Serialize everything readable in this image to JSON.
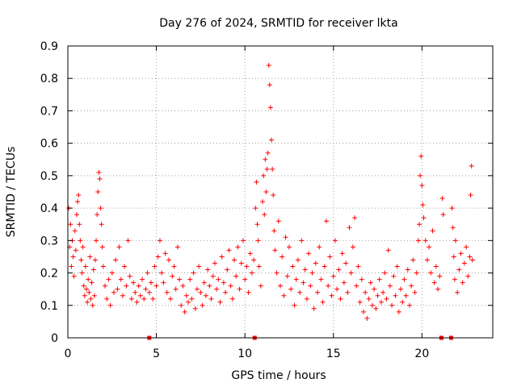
{
  "chart_data": {
    "type": "scatter",
    "title": "Day 276 of 2024, SRMTID for receiver lkta",
    "xlabel": "GPS time / hours",
    "ylabel": "SRMTID / TECUs",
    "xlim": [
      0,
      24
    ],
    "ylim": [
      0,
      0.9
    ],
    "xticks": [
      0,
      5,
      10,
      15,
      20
    ],
    "xtick_labels": [
      "0",
      "5",
      "10",
      "15",
      "20"
    ],
    "yticks": [
      0,
      0.1,
      0.2,
      0.3,
      0.4,
      0.5,
      0.6,
      0.7,
      0.8,
      0.9
    ],
    "ytick_labels": [
      "0",
      "0.1",
      "0.2",
      "0.3",
      "0.4",
      "0.5",
      "0.6",
      "0.7",
      "0.8",
      "0.9"
    ],
    "grid": true,
    "marker": "+",
    "series_color": "#ff0000",
    "series": [
      {
        "name": "SRMTID",
        "points": [
          [
            0.05,
            0.4
          ],
          [
            0.1,
            0.28
          ],
          [
            0.15,
            0.35
          ],
          [
            0.2,
            0.22
          ],
          [
            0.25,
            0.3
          ],
          [
            0.3,
            0.25
          ],
          [
            0.35,
            0.19
          ],
          [
            0.4,
            0.33
          ],
          [
            0.45,
            0.27
          ],
          [
            0.5,
            0.38
          ],
          [
            0.55,
            0.42
          ],
          [
            0.6,
            0.44
          ],
          [
            0.65,
            0.35
          ],
          [
            0.7,
            0.3
          ],
          [
            0.75,
            0.24
          ],
          [
            0.8,
            0.2
          ],
          [
            0.85,
            0.28
          ],
          [
            0.9,
            0.16
          ],
          [
            0.95,
            0.13
          ],
          [
            1.0,
            0.22
          ],
          [
            1.05,
            0.15
          ],
          [
            1.1,
            0.11
          ],
          [
            1.15,
            0.18
          ],
          [
            1.2,
            0.14
          ],
          [
            1.25,
            0.25
          ],
          [
            1.3,
            0.12
          ],
          [
            1.35,
            0.17
          ],
          [
            1.4,
            0.1
          ],
          [
            1.45,
            0.21
          ],
          [
            1.5,
            0.13
          ],
          [
            1.55,
            0.24
          ],
          [
            1.6,
            0.3
          ],
          [
            1.65,
            0.38
          ],
          [
            1.7,
            0.45
          ],
          [
            1.75,
            0.51
          ],
          [
            1.8,
            0.49
          ],
          [
            1.85,
            0.4
          ],
          [
            1.9,
            0.35
          ],
          [
            1.95,
            0.28
          ],
          [
            2.0,
            0.22
          ],
          [
            2.1,
            0.16
          ],
          [
            2.2,
            0.12
          ],
          [
            2.3,
            0.18
          ],
          [
            2.4,
            0.1
          ],
          [
            2.5,
            0.2
          ],
          [
            2.6,
            0.14
          ],
          [
            2.7,
            0.24
          ],
          [
            2.8,
            0.15
          ],
          [
            2.9,
            0.28
          ],
          [
            3.0,
            0.18
          ],
          [
            3.1,
            0.13
          ],
          [
            3.2,
            0.22
          ],
          [
            3.3,
            0.16
          ],
          [
            3.4,
            0.3
          ],
          [
            3.5,
            0.19
          ],
          [
            3.6,
            0.12
          ],
          [
            3.7,
            0.17
          ],
          [
            3.8,
            0.14
          ],
          [
            3.9,
            0.11
          ],
          [
            4.0,
            0.16
          ],
          [
            4.1,
            0.13
          ],
          [
            4.2,
            0.18
          ],
          [
            4.3,
            0.12
          ],
          [
            4.4,
            0.15
          ],
          [
            4.5,
            0.2
          ],
          [
            4.6,
            0.14
          ],
          [
            4.7,
            0.17
          ],
          [
            4.8,
            0.12
          ],
          [
            4.9,
            0.22
          ],
          [
            5.0,
            0.16
          ],
          [
            5.1,
            0.25
          ],
          [
            5.2,
            0.3
          ],
          [
            5.3,
            0.2
          ],
          [
            5.4,
            0.17
          ],
          [
            5.5,
            0.26
          ],
          [
            5.6,
            0.14
          ],
          [
            5.7,
            0.24
          ],
          [
            5.8,
            0.12
          ],
          [
            5.9,
            0.19
          ],
          [
            6.0,
            0.22
          ],
          [
            6.1,
            0.15
          ],
          [
            6.2,
            0.28
          ],
          [
            6.3,
            0.18
          ],
          [
            6.4,
            0.1
          ],
          [
            6.5,
            0.16
          ],
          [
            6.6,
            0.08
          ],
          [
            6.7,
            0.13
          ],
          [
            6.8,
            0.11
          ],
          [
            6.9,
            0.18
          ],
          [
            7.0,
            0.12
          ],
          [
            7.1,
            0.2
          ],
          [
            7.2,
            0.09
          ],
          [
            7.3,
            0.15
          ],
          [
            7.4,
            0.22
          ],
          [
            7.5,
            0.14
          ],
          [
            7.6,
            0.1
          ],
          [
            7.7,
            0.17
          ],
          [
            7.8,
            0.13
          ],
          [
            7.9,
            0.21
          ],
          [
            8.0,
            0.16
          ],
          [
            8.1,
            0.12
          ],
          [
            8.2,
            0.19
          ],
          [
            8.3,
            0.23
          ],
          [
            8.4,
            0.15
          ],
          [
            8.5,
            0.18
          ],
          [
            8.6,
            0.11
          ],
          [
            8.7,
            0.25
          ],
          [
            8.8,
            0.17
          ],
          [
            8.9,
            0.14
          ],
          [
            9.0,
            0.21
          ],
          [
            9.1,
            0.27
          ],
          [
            9.2,
            0.16
          ],
          [
            9.3,
            0.12
          ],
          [
            9.4,
            0.24
          ],
          [
            9.5,
            0.19
          ],
          [
            9.6,
            0.28
          ],
          [
            9.7,
            0.15
          ],
          [
            9.8,
            0.23
          ],
          [
            9.9,
            0.3
          ],
          [
            10.0,
            0.18
          ],
          [
            10.1,
            0.22
          ],
          [
            10.2,
            0.14
          ],
          [
            10.3,
            0.26
          ],
          [
            10.4,
            0.2
          ],
          [
            10.5,
            0.24
          ],
          [
            10.6,
            0.4
          ],
          [
            10.65,
            0.48
          ],
          [
            10.7,
            0.35
          ],
          [
            10.75,
            0.3
          ],
          [
            10.8,
            0.22
          ],
          [
            10.9,
            0.16
          ],
          [
            11.0,
            0.42
          ],
          [
            11.05,
            0.5
          ],
          [
            11.1,
            0.38
          ],
          [
            11.15,
            0.55
          ],
          [
            11.2,
            0.45
          ],
          [
            11.25,
            0.52
          ],
          [
            11.3,
            0.57
          ],
          [
            11.35,
            0.84
          ],
          [
            11.4,
            0.78
          ],
          [
            11.45,
            0.71
          ],
          [
            11.5,
            0.61
          ],
          [
            11.55,
            0.52
          ],
          [
            11.6,
            0.44
          ],
          [
            11.65,
            0.33
          ],
          [
            11.7,
            0.27
          ],
          [
            11.8,
            0.2
          ],
          [
            11.9,
            0.36
          ],
          [
            12.0,
            0.16
          ],
          [
            12.1,
            0.25
          ],
          [
            12.2,
            0.13
          ],
          [
            12.3,
            0.31
          ],
          [
            12.4,
            0.19
          ],
          [
            12.5,
            0.28
          ],
          [
            12.6,
            0.15
          ],
          [
            12.7,
            0.22
          ],
          [
            12.8,
            0.1
          ],
          [
            12.9,
            0.18
          ],
          [
            13.0,
            0.24
          ],
          [
            13.1,
            0.14
          ],
          [
            13.2,
            0.3
          ],
          [
            13.3,
            0.17
          ],
          [
            13.4,
            0.21
          ],
          [
            13.5,
            0.12
          ],
          [
            13.6,
            0.26
          ],
          [
            13.7,
            0.16
          ],
          [
            13.8,
            0.2
          ],
          [
            13.9,
            0.09
          ],
          [
            14.0,
            0.23
          ],
          [
            14.1,
            0.14
          ],
          [
            14.2,
            0.28
          ],
          [
            14.3,
            0.18
          ],
          [
            14.4,
            0.11
          ],
          [
            14.5,
            0.22
          ],
          [
            14.6,
            0.36
          ],
          [
            14.7,
            0.16
          ],
          [
            14.8,
            0.25
          ],
          [
            14.9,
            0.13
          ],
          [
            15.0,
            0.19
          ],
          [
            15.1,
            0.3
          ],
          [
            15.2,
            0.15
          ],
          [
            15.3,
            0.21
          ],
          [
            15.4,
            0.12
          ],
          [
            15.5,
            0.26
          ],
          [
            15.6,
            0.17
          ],
          [
            15.7,
            0.23
          ],
          [
            15.8,
            0.14
          ],
          [
            15.9,
            0.34
          ],
          [
            16.0,
            0.2
          ],
          [
            16.1,
            0.28
          ],
          [
            16.2,
            0.37
          ],
          [
            16.3,
            0.16
          ],
          [
            16.4,
            0.22
          ],
          [
            16.5,
            0.11
          ],
          [
            16.6,
            0.18
          ],
          [
            16.7,
            0.08
          ],
          [
            16.8,
            0.14
          ],
          [
            16.9,
            0.06
          ],
          [
            17.0,
            0.12
          ],
          [
            17.1,
            0.17
          ],
          [
            17.2,
            0.1
          ],
          [
            17.3,
            0.15
          ],
          [
            17.4,
            0.09
          ],
          [
            17.5,
            0.13
          ],
          [
            17.6,
            0.18
          ],
          [
            17.7,
            0.11
          ],
          [
            17.8,
            0.14
          ],
          [
            17.9,
            0.2
          ],
          [
            18.0,
            0.12
          ],
          [
            18.1,
            0.27
          ],
          [
            18.2,
            0.16
          ],
          [
            18.3,
            0.1
          ],
          [
            18.4,
            0.19
          ],
          [
            18.5,
            0.13
          ],
          [
            18.6,
            0.22
          ],
          [
            18.7,
            0.08
          ],
          [
            18.8,
            0.15
          ],
          [
            18.9,
            0.11
          ],
          [
            19.0,
            0.18
          ],
          [
            19.1,
            0.13
          ],
          [
            19.2,
            0.21
          ],
          [
            19.3,
            0.1
          ],
          [
            19.4,
            0.16
          ],
          [
            19.5,
            0.24
          ],
          [
            19.6,
            0.14
          ],
          [
            19.7,
            0.2
          ],
          [
            19.8,
            0.3
          ],
          [
            19.85,
            0.35
          ],
          [
            19.9,
            0.5
          ],
          [
            19.95,
            0.56
          ],
          [
            20.0,
            0.47
          ],
          [
            20.05,
            0.41
          ],
          [
            20.1,
            0.37
          ],
          [
            20.2,
            0.3
          ],
          [
            20.3,
            0.24
          ],
          [
            20.4,
            0.28
          ],
          [
            20.5,
            0.2
          ],
          [
            20.6,
            0.33
          ],
          [
            20.7,
            0.17
          ],
          [
            20.8,
            0.22
          ],
          [
            20.9,
            0.15
          ],
          [
            21.0,
            0.19
          ],
          [
            21.15,
            0.43
          ],
          [
            21.2,
            0.38
          ],
          [
            21.7,
            0.4
          ],
          [
            21.75,
            0.34
          ],
          [
            21.8,
            0.25
          ],
          [
            21.85,
            0.18
          ],
          [
            21.9,
            0.3
          ],
          [
            22.0,
            0.14
          ],
          [
            22.1,
            0.21
          ],
          [
            22.2,
            0.26
          ],
          [
            22.3,
            0.17
          ],
          [
            22.4,
            0.23
          ],
          [
            22.5,
            0.28
          ],
          [
            22.6,
            0.19
          ],
          [
            22.7,
            0.25
          ],
          [
            22.75,
            0.44
          ],
          [
            22.8,
            0.53
          ],
          [
            22.85,
            0.24
          ]
        ],
        "zero_markers": [
          4.6,
          10.55,
          21.1,
          21.65
        ]
      }
    ]
  }
}
